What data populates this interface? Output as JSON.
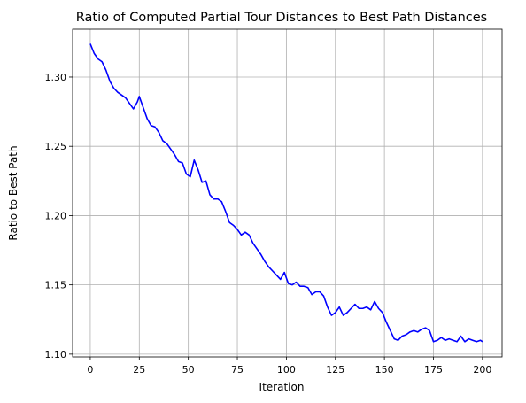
{
  "chart_data": {
    "type": "line",
    "title": "Ratio of Computed Partial Tour Distances to Best Path Distances",
    "xlabel": "Iteration",
    "ylabel": "Ratio to Best Path",
    "xlim": [
      -9,
      210
    ],
    "ylim": [
      1.098,
      1.3345
    ],
    "xticks": [
      0,
      25,
      50,
      75,
      100,
      125,
      150,
      175,
      200
    ],
    "yticks": [
      1.1,
      1.15,
      1.2,
      1.25,
      1.3
    ],
    "xtick_labels": [
      "0",
      "25",
      "50",
      "75",
      "100",
      "125",
      "150",
      "175",
      "200"
    ],
    "ytick_labels": [
      "1.10",
      "1.15",
      "1.20",
      "1.25",
      "1.30"
    ],
    "grid": true,
    "series": [
      {
        "color": "#0000ff",
        "x": [
          0,
          2,
          4,
          6,
          8,
          10,
          12,
          14,
          16,
          18,
          20,
          22,
          24,
          25,
          27,
          29,
          31,
          33,
          35,
          37,
          39,
          41,
          43,
          45,
          47,
          49,
          51,
          53,
          55,
          57,
          59,
          61,
          63,
          65,
          67,
          69,
          71,
          73,
          75,
          77,
          79,
          81,
          83,
          85,
          87,
          89,
          91,
          93,
          95,
          97,
          99,
          101,
          103,
          105,
          107,
          109,
          111,
          113,
          115,
          117,
          119,
          121,
          123,
          125,
          127,
          129,
          131,
          133,
          135,
          137,
          139,
          141,
          143,
          145,
          147,
          149,
          151,
          153,
          155,
          157,
          159,
          161,
          163,
          165,
          167,
          169,
          171,
          173,
          175,
          177,
          179,
          181,
          183,
          185,
          187,
          189,
          191,
          193,
          195,
          197,
          199,
          200
        ],
        "y": [
          1.324,
          1.317,
          1.313,
          1.311,
          1.305,
          1.297,
          1.292,
          1.289,
          1.287,
          1.285,
          1.281,
          1.277,
          1.282,
          1.286,
          1.278,
          1.27,
          1.265,
          1.264,
          1.26,
          1.254,
          1.252,
          1.248,
          1.244,
          1.239,
          1.238,
          1.23,
          1.228,
          1.24,
          1.233,
          1.224,
          1.225,
          1.215,
          1.212,
          1.212,
          1.21,
          1.203,
          1.195,
          1.193,
          1.19,
          1.186,
          1.188,
          1.186,
          1.18,
          1.176,
          1.172,
          1.167,
          1.163,
          1.16,
          1.157,
          1.154,
          1.159,
          1.151,
          1.15,
          1.152,
          1.149,
          1.149,
          1.148,
          1.143,
          1.145,
          1.145,
          1.142,
          1.134,
          1.128,
          1.13,
          1.134,
          1.128,
          1.13,
          1.133,
          1.136,
          1.133,
          1.133,
          1.134,
          1.132,
          1.138,
          1.133,
          1.13,
          1.123,
          1.117,
          1.111,
          1.11,
          1.113,
          1.114,
          1.116,
          1.117,
          1.116,
          1.118,
          1.119,
          1.117,
          1.109,
          1.11,
          1.112,
          1.11,
          1.111,
          1.11,
          1.109,
          1.113,
          1.109,
          1.111,
          1.11,
          1.109,
          1.11,
          1.109
        ]
      }
    ]
  }
}
